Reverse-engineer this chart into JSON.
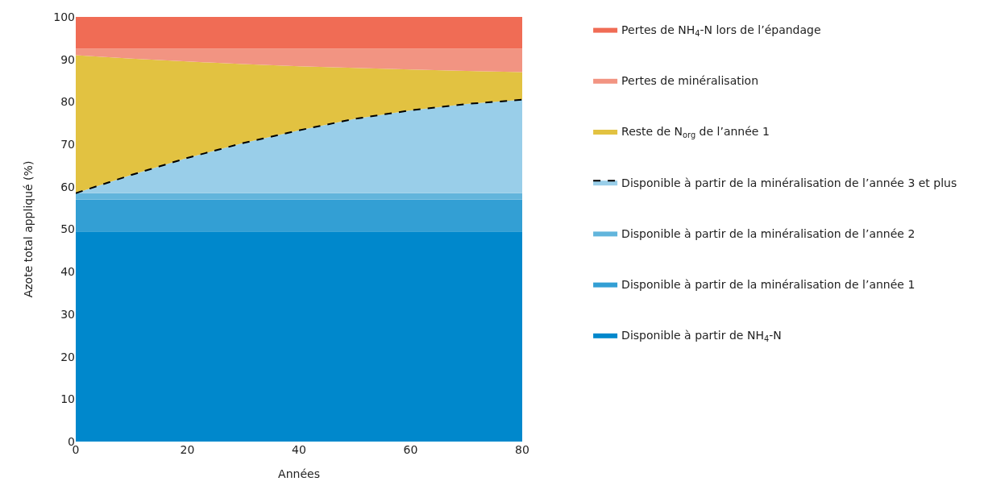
{
  "chart_data": {
    "type": "area",
    "stacked": true,
    "xlabel": "Années",
    "ylabel": "Azote total appliqué (%)",
    "x": [
      0,
      10,
      20,
      30,
      40,
      50,
      60,
      70,
      80
    ],
    "xlim": [
      0,
      80
    ],
    "xticks": [
      0,
      20,
      40,
      60,
      80
    ],
    "ylim": [
      0,
      100
    ],
    "yticks": [
      0,
      10,
      20,
      30,
      40,
      50,
      60,
      70,
      80,
      90,
      100
    ],
    "legend": "right",
    "series": [
      {
        "name": "Disponible à partir de NH$_{4}$-N",
        "color": "#0088cc",
        "values": [
          49.5,
          49.5,
          49.5,
          49.5,
          49.5,
          49.5,
          49.5,
          49.5,
          49.5
        ]
      },
      {
        "name": "Disponible à partir de la minéralisation de l’année 1",
        "color": "#339fd4",
        "values": [
          7.5,
          7.5,
          7.5,
          7.5,
          7.5,
          7.5,
          7.5,
          7.5,
          7.5
        ]
      },
      {
        "name": "Disponible à partir de la minéralisation de l’année 2",
        "color": "#62b5dc",
        "values": [
          1.5,
          1.5,
          1.5,
          1.5,
          1.5,
          1.5,
          1.5,
          1.5,
          1.5
        ]
      },
      {
        "name": "Disponible à partir de la minéralisation de l’année 3 et plus",
        "color": "#99cee9",
        "line_style": "dashed",
        "values": [
          0,
          4.3,
          8.3,
          11.8,
          14.8,
          17.5,
          19.5,
          21.0,
          22.0
        ]
      },
      {
        "name": "Reste de N$_{org}$ de l’année 1",
        "color": "#e2c241",
        "values": [
          32.5,
          27.4,
          22.7,
          18.6,
          15.1,
          12.0,
          9.6,
          7.8,
          6.5
        ]
      },
      {
        "name": "Pertes de minéralisation",
        "color": "#f29482",
        "values": [
          1.5,
          2.3,
          3.0,
          3.6,
          4.1,
          4.5,
          4.9,
          5.2,
          5.5
        ]
      },
      {
        "name": "Pertes de NH$_{4}$-N lors de l’épandage",
        "color": "#f06c55",
        "values": [
          7.5,
          7.5,
          7.5,
          7.5,
          7.5,
          7.5,
          7.5,
          7.5,
          7.5
        ]
      }
    ]
  }
}
